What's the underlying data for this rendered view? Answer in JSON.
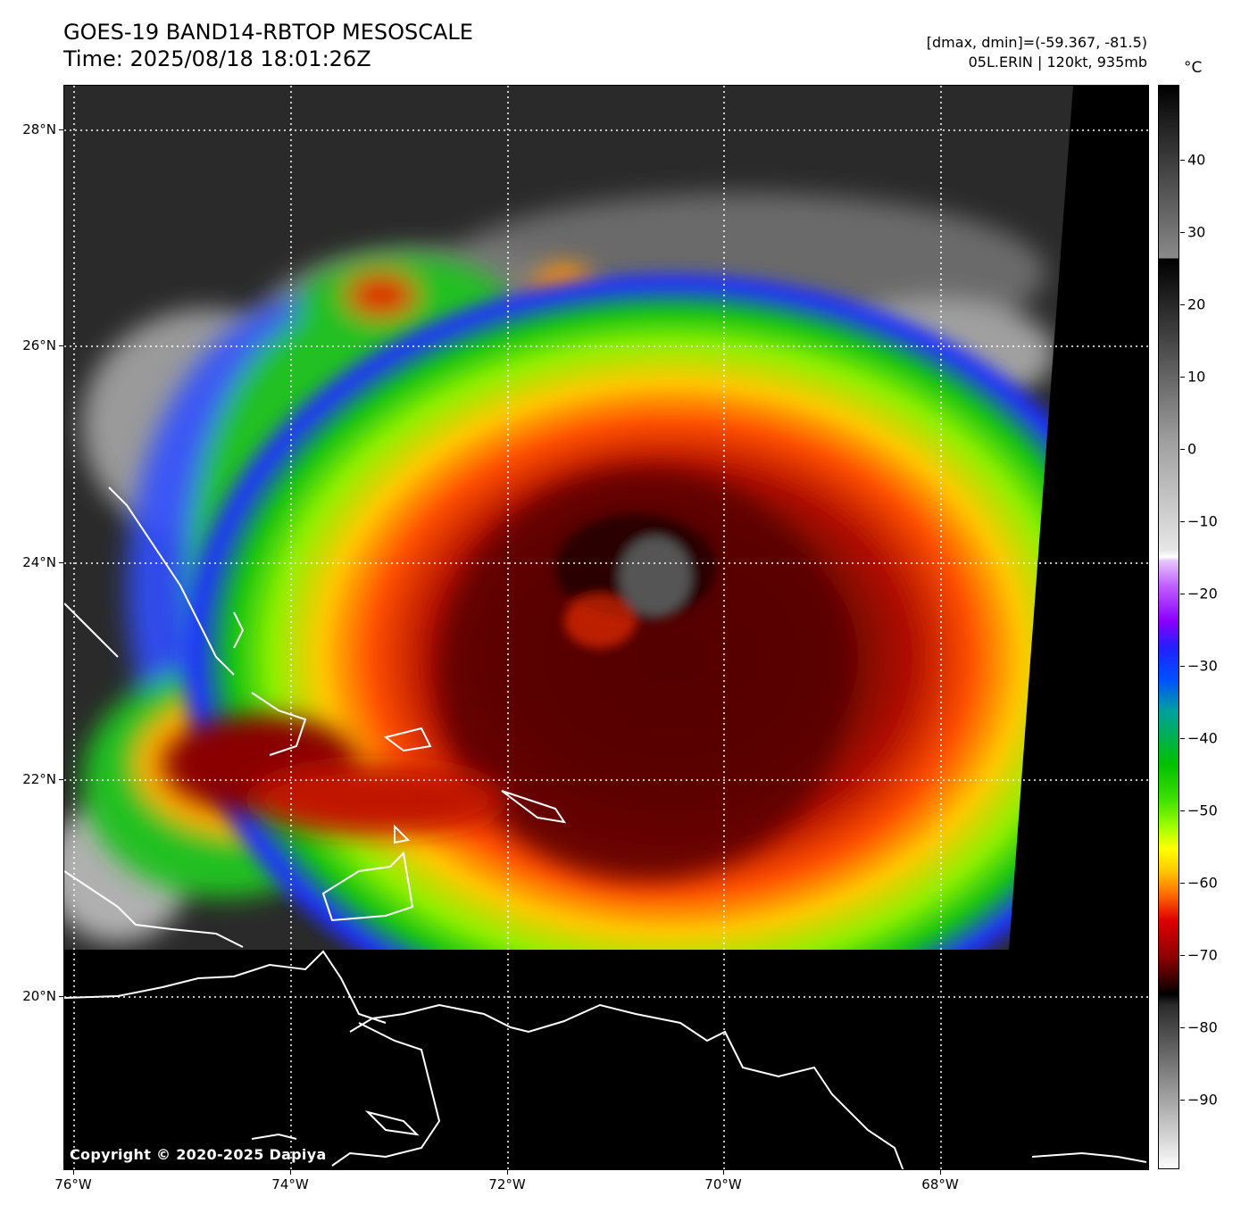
{
  "header": {
    "title_line1": "GOES-19 BAND14-RBTOP MESOSCALE",
    "title_line2": "Time: 2025/08/18 18:01:26Z",
    "stats_line": "[dmax, dmin]=(-59.367, -81.5)",
    "storm_line": "05L.ERIN | 120kt, 935mb"
  },
  "map": {
    "copyright": "Copyright © 2020-2025 Dapiya",
    "lat_labels": [
      "28°N",
      "26°N",
      "24°N",
      "22°N",
      "20°N"
    ],
    "lon_labels": [
      "76°W",
      "74°W",
      "72°W",
      "70°W",
      "68°W"
    ]
  },
  "colorbar": {
    "unit": "°C",
    "labels": [
      "40",
      "30",
      "20",
      "10",
      "0",
      "−10",
      "−20",
      "−30",
      "−40",
      "−50",
      "−60",
      "−70",
      "−80",
      "−90"
    ]
  }
}
